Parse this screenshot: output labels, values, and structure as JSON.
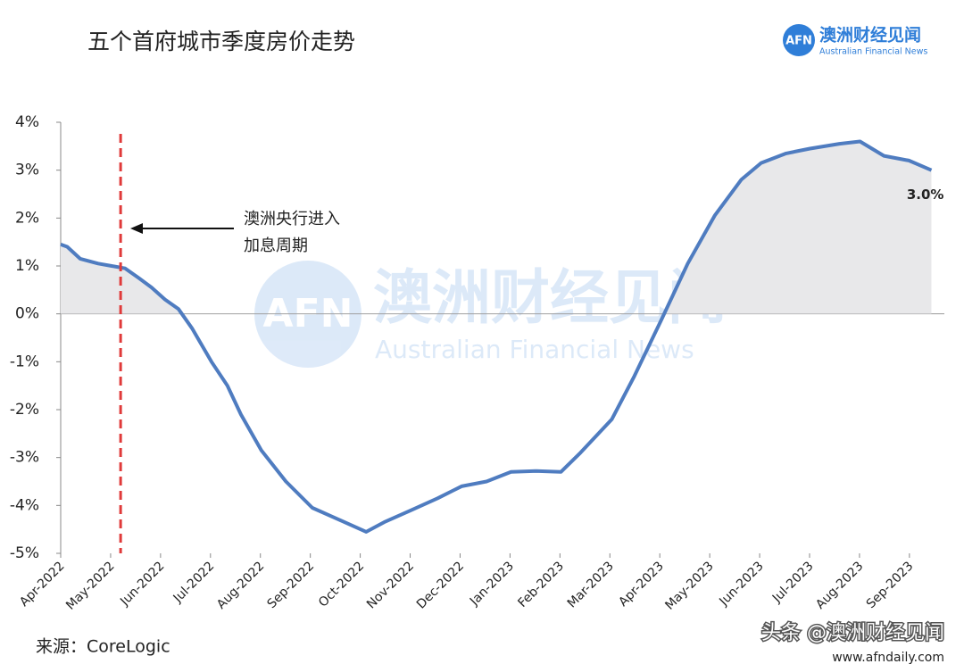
{
  "chart_data": {
    "type": "line",
    "title": "五个首府城市季度房价走势",
    "x": [
      0,
      0.13,
      0.39,
      0.75,
      1.02,
      1.29,
      1.56,
      1.82,
      2.09,
      2.36,
      2.63,
      3.02,
      3.34,
      3.61,
      4.02,
      4.51,
      5.04,
      5.58,
      6.12,
      6.48,
      7.02,
      7.55,
      8.03,
      8.53,
      9.02,
      9.52,
      10.02,
      10.41,
      11.04,
      11.49,
      12.02,
      12.56,
      13.1,
      13.63,
      14.03,
      14.53,
      15.01,
      15.6,
      16.01,
      16.49,
      16.99,
      17.44
    ],
    "series": [
      {
        "color": "#4f7cc0",
        "values": [
          1.45,
          1.4,
          1.15,
          1.05,
          1.0,
          0.95,
          0.75,
          0.55,
          0.3,
          0.1,
          -0.3,
          -1.0,
          -1.5,
          -2.1,
          -2.85,
          -3.5,
          -4.05,
          -4.3,
          -4.55,
          -4.35,
          -4.1,
          -3.85,
          -3.6,
          -3.5,
          -3.3,
          -3.28,
          -3.3,
          -2.9,
          -2.2,
          -1.3,
          -0.15,
          1.05,
          2.05,
          2.8,
          3.15,
          3.35,
          3.45,
          3.55,
          3.6,
          3.3,
          3.2,
          3.0
        ]
      }
    ],
    "last_value_label": "3.0%",
    "xlim": [
      0,
      17.7
    ],
    "xticks": [
      {
        "value": 0,
        "label": "Apr-2022"
      },
      {
        "value": 1,
        "label": "May-2022"
      },
      {
        "value": 2,
        "label": "Jun-2022"
      },
      {
        "value": 3,
        "label": "Jul-2022"
      },
      {
        "value": 4,
        "label": "Aug-2022"
      },
      {
        "value": 5,
        "label": "Sep-2022"
      },
      {
        "value": 6,
        "label": "Oct-2022"
      },
      {
        "value": 7,
        "label": "Nov-2022"
      },
      {
        "value": 8,
        "label": "Dec-2022"
      },
      {
        "value": 9,
        "label": "Jan-2023"
      },
      {
        "value": 10,
        "label": "Feb-2023"
      },
      {
        "value": 11,
        "label": "Mar-2023"
      },
      {
        "value": 12,
        "label": "Apr-2023"
      },
      {
        "value": 13,
        "label": "May-2023"
      },
      {
        "value": 14,
        "label": "Jun-2023"
      },
      {
        "value": 15,
        "label": "Jul-2023"
      },
      {
        "value": 16,
        "label": "Aug-2023"
      },
      {
        "value": 17,
        "label": "Sep-2023"
      }
    ],
    "ylim": [
      -5,
      4
    ],
    "yticks": [
      {
        "value": 4,
        "label": "4%"
      },
      {
        "value": 3,
        "label": "3%"
      },
      {
        "value": 2,
        "label": "2%"
      },
      {
        "value": 1,
        "label": "1%"
      },
      {
        "value": 0,
        "label": "0%"
      },
      {
        "value": -1,
        "label": "-1%"
      },
      {
        "value": -2,
        "label": "-2%"
      },
      {
        "value": -3,
        "label": "-3%"
      },
      {
        "value": -4,
        "label": "-4%"
      },
      {
        "value": -5,
        "label": "-5%"
      }
    ],
    "reference_line": {
      "x": 1.2,
      "color": "#e03a3a"
    },
    "annotation": [
      "澳洲央行进入",
      "加息周期"
    ],
    "source": "来源：CoreLogic"
  },
  "logo": {
    "mark": "AFN",
    "name": "澳洲财经见闻",
    "subtitle": "Australian Financial News"
  },
  "watermark": {
    "mark": "AFN",
    "name": "澳洲财经见闻",
    "subtitle": "Australian Financial News"
  },
  "footer": {
    "credit": "头条 @澳洲财经见闻",
    "url": "www.afndaily.com"
  }
}
